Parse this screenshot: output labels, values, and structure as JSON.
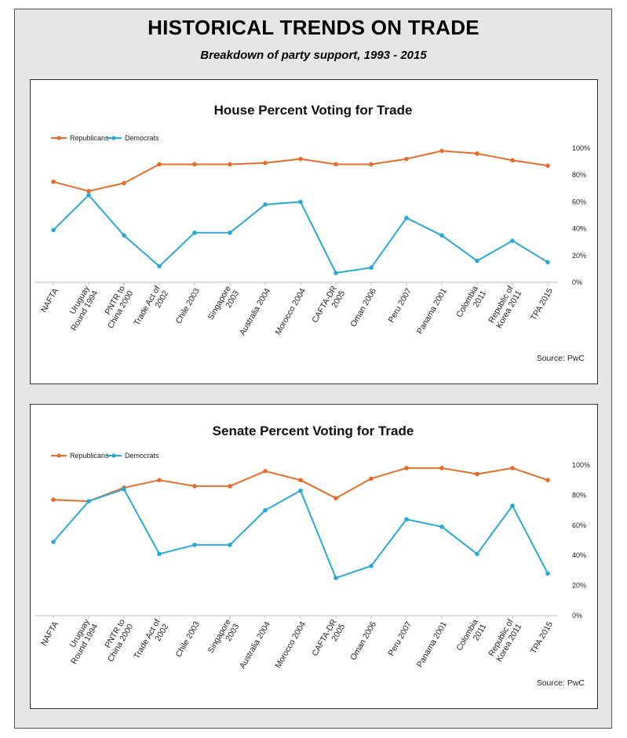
{
  "header": {
    "title": "HISTORICAL TRENDS ON TRADE",
    "subtitle": "Breakdown of party support, 1993 - 2015"
  },
  "colors": {
    "republicans": "#E46C2B",
    "democrats": "#2BA7D6"
  },
  "chart_data": [
    {
      "type": "line",
      "title": "House Percent Voting for Trade",
      "source": "Source: PwC",
      "categories": [
        [
          "NAFTA"
        ],
        [
          "Uruguay",
          "Round 1994"
        ],
        [
          "PNTR to",
          "China 2000"
        ],
        [
          "Trade Act of",
          "2002"
        ],
        [
          "Chile 2003"
        ],
        [
          "Singapore",
          "2003"
        ],
        [
          "Australia 2004"
        ],
        [
          "Morocco 2004"
        ],
        [
          "CAFTA-DR",
          "2005"
        ],
        [
          "Oman 2006"
        ],
        [
          "Peru 2007"
        ],
        [
          "Panama 2001"
        ],
        [
          "Colombia",
          "2011"
        ],
        [
          "Republic of",
          "Korea 2011"
        ],
        [
          "TPA 2015"
        ]
      ],
      "yticks": [
        "0%",
        "20%",
        "40%",
        "60%",
        "80%",
        "100%"
      ],
      "ylim": [
        0,
        100
      ],
      "grid": false,
      "legend_position": "top-left",
      "series": [
        {
          "name": "Republicans",
          "values": [
            75,
            68,
            74,
            88,
            88,
            88,
            89,
            92,
            88,
            88,
            92,
            98,
            96,
            91,
            87
          ]
        },
        {
          "name": "Democrats",
          "values": [
            39,
            65,
            35,
            12,
            37,
            37,
            58,
            60,
            7,
            11,
            48,
            35,
            16,
            31,
            15
          ]
        }
      ]
    },
    {
      "type": "line",
      "title": "Senate Percent Voting for Trade",
      "source": "Source: PwC",
      "categories": [
        [
          "NAFTA"
        ],
        [
          "Uruguay",
          "Round 1994"
        ],
        [
          "PNTR to",
          "China 2000"
        ],
        [
          "Trade Act of",
          "2002"
        ],
        [
          "Chile 2003"
        ],
        [
          "Singapore",
          "2003"
        ],
        [
          "Australia 2004"
        ],
        [
          "Morocco 2004"
        ],
        [
          "CAFTA-DR",
          "2005"
        ],
        [
          "Oman 2006"
        ],
        [
          "Peru 2007"
        ],
        [
          "Panama 2001"
        ],
        [
          "Colombia",
          "2011"
        ],
        [
          "Republic of",
          "Korea 2011"
        ],
        [
          "TPA 2015"
        ]
      ],
      "yticks": [
        "0%",
        "20%",
        "40%",
        "60%",
        "80%",
        "100%"
      ],
      "ylim": [
        0,
        100
      ],
      "grid": false,
      "legend_position": "top-left",
      "series": [
        {
          "name": "Republicans",
          "values": [
            77,
            76,
            85,
            90,
            86,
            86,
            96,
            90,
            78,
            91,
            98,
            98,
            94,
            98,
            90
          ]
        },
        {
          "name": "Democrats",
          "values": [
            49,
            76,
            84,
            41,
            47,
            47,
            70,
            83,
            25,
            33,
            64,
            59,
            41,
            73,
            28
          ]
        }
      ]
    }
  ]
}
